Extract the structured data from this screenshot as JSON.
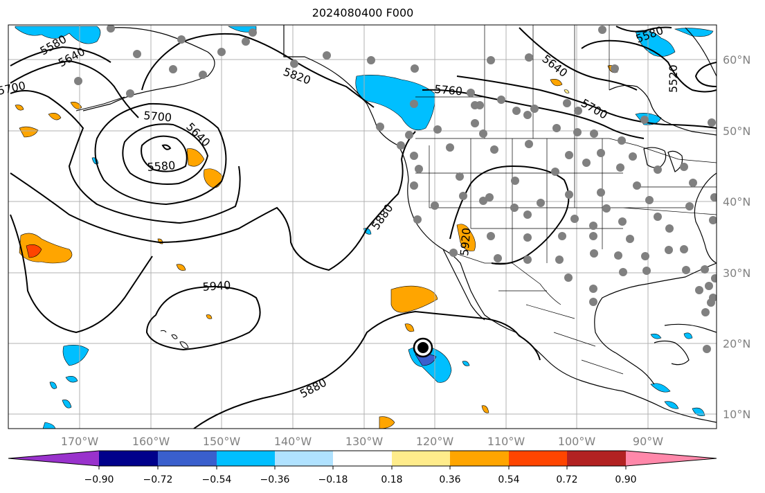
{
  "title": "2024080400 F000",
  "map": {
    "lat_labels": [
      "60°N",
      "50°N",
      "40°N",
      "30°N",
      "20°N",
      "10°N"
    ],
    "lon_labels": [
      "170°W",
      "160°W",
      "150°W",
      "140°W",
      "130°W",
      "120°W",
      "110°W",
      "100°W",
      "90°W"
    ],
    "contour_labels": [
      "5580",
      "5640",
      "5700",
      "5820",
      "5760",
      "5640",
      "5700",
      "5520",
      "5580",
      "5700",
      "5640",
      "5580",
      "5880",
      "5920",
      "5940",
      "5880"
    ],
    "storm_marker": "tropical-cyclone-marker",
    "colors": {
      "grid": "#b0b0b0",
      "contour": "#000000",
      "station": "#808080"
    }
  },
  "colorbar": {
    "tick_labels": [
      "−0.90",
      "−0.72",
      "−0.54",
      "−0.36",
      "−0.18",
      "0.18",
      "0.36",
      "0.54",
      "0.72",
      "0.90"
    ],
    "colors": [
      "#9932cc",
      "#00008b",
      "#3a5fcd",
      "#00bfff",
      "#b0e2ff",
      "#ffffff",
      "#ffec8b",
      "#ffa500",
      "#ff4500",
      "#b22222",
      "#ff88aa"
    ]
  }
}
